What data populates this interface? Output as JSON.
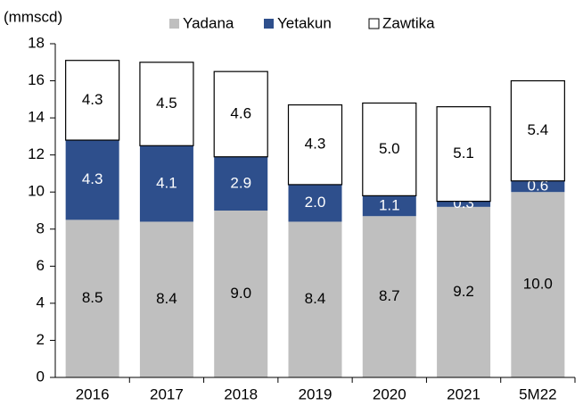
{
  "chart_data": {
    "type": "stacked_bar",
    "y_axis_label": "(mmscd)",
    "categories": [
      "2016",
      "2017",
      "2018",
      "2019",
      "2020",
      "2021",
      "5M22"
    ],
    "series": [
      {
        "name": "Yadana",
        "color": "#bfbfbf",
        "label_color": "#000000",
        "values": [
          8.5,
          8.4,
          9.0,
          8.4,
          8.7,
          9.2,
          10.0
        ],
        "value_labels": [
          "8.5",
          "8.4",
          "9.0",
          "8.4",
          "8.7",
          "9.2",
          "10.0"
        ]
      },
      {
        "name": "Yetakun",
        "color": "#2e4f8c",
        "label_color": "#ffffff",
        "values": [
          4.3,
          4.1,
          2.9,
          2.0,
          1.1,
          0.3,
          0.6
        ],
        "value_labels": [
          "4.3",
          "4.1",
          "2.9",
          "2.0",
          "1.1",
          "0.3",
          "0.6"
        ]
      },
      {
        "name": "Zawtika",
        "color": "#ffffff",
        "label_color": "#000000",
        "values": [
          4.3,
          4.5,
          4.6,
          4.3,
          5.0,
          5.1,
          5.4
        ],
        "value_labels": [
          "4.3",
          "4.5",
          "4.6",
          "4.3",
          "5.0",
          "5.1",
          "5.4"
        ]
      }
    ],
    "ylim": [
      0,
      18
    ],
    "yticks": [
      0,
      2,
      4,
      6,
      8,
      10,
      12,
      14,
      16,
      18
    ],
    "legend": "top"
  }
}
